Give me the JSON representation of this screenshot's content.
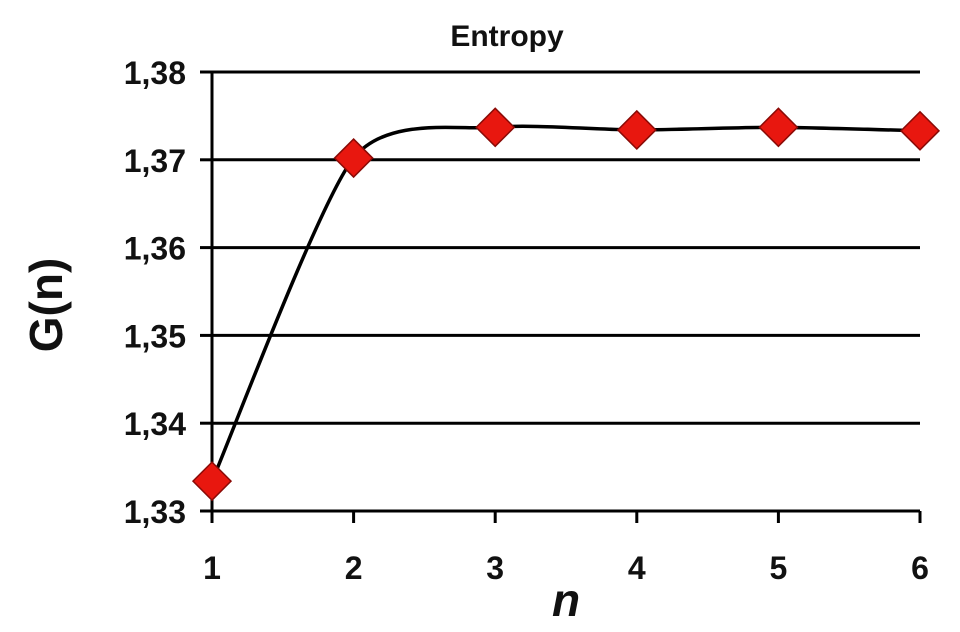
{
  "chart_data": {
    "type": "scatter",
    "title": "Entropy",
    "xlabel": "n",
    "ylabel": "G(n)",
    "x": [
      1,
      2,
      3,
      4,
      5,
      6
    ],
    "series": [
      {
        "values": [
          1.3334,
          1.3702,
          1.3737,
          1.3734,
          1.3737,
          1.3733
        ],
        "marker": "diamond",
        "smoothed_line": true
      }
    ],
    "xlim": [
      1,
      6
    ],
    "ylim": [
      1.33,
      1.38
    ],
    "x_ticks": [
      "1",
      "2",
      "3",
      "4",
      "5",
      "6"
    ],
    "y_ticks": [
      "1,33",
      "1,34",
      "1,35",
      "1,36",
      "1,37",
      "1,38"
    ],
    "grid": "horizontal",
    "legend": "none",
    "colors": {
      "marker_fill": "#e8170f",
      "marker_stroke": "#8a0a06",
      "line": "#000000",
      "grid": "#000000"
    }
  }
}
